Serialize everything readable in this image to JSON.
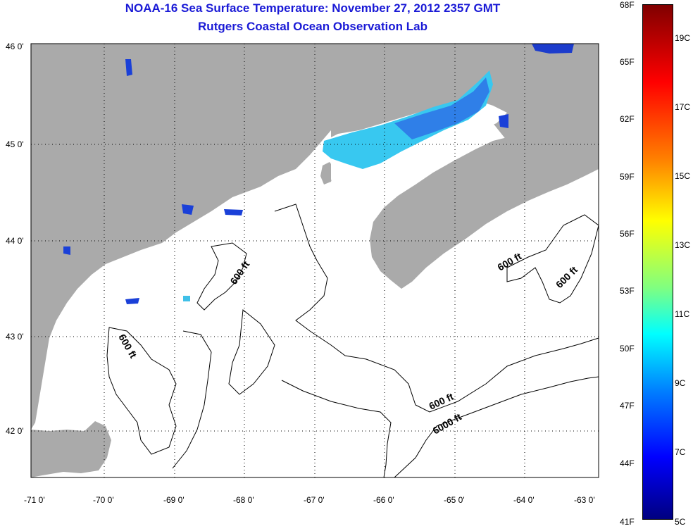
{
  "title": {
    "line1": "NOAA-16 Sea Surface Temperature:  November 27, 2012 2357 GMT",
    "line2": "Rutgers Coastal Ocean Observation Lab"
  },
  "map": {
    "lat_labels": [
      "46 0'",
      "45 0'",
      "44 0'",
      "43 0'",
      "42 0'"
    ],
    "lon_labels": [
      "-71 0'",
      "-70 0'",
      "-69 0'",
      "-68 0'",
      "-67 0'",
      "-66 0'",
      "-65 0'",
      "-64 0'",
      "-63 0'"
    ],
    "contour_labels": [
      "600 ft",
      "600 ft",
      "600 ft",
      "600 ft",
      "600 ft",
      "6000 ft"
    ],
    "colors": {
      "land": "#aaaaaa",
      "ocean": "#ffffff",
      "grid": "#000000"
    }
  },
  "legend": {
    "fahrenheit": [
      "68F",
      "65F",
      "62F",
      "59F",
      "56F",
      "53F",
      "50F",
      "47F",
      "44F",
      "41F"
    ],
    "celsius": [
      "19C",
      "17C",
      "15C",
      "13C",
      "11C",
      "9C",
      "7C",
      "5C"
    ],
    "colors": [
      "#800000",
      "#ff0000",
      "#ff8000",
      "#ffff00",
      "#80ff80",
      "#00ffff",
      "#0080ff",
      "#0000ff",
      "#000080"
    ]
  }
}
